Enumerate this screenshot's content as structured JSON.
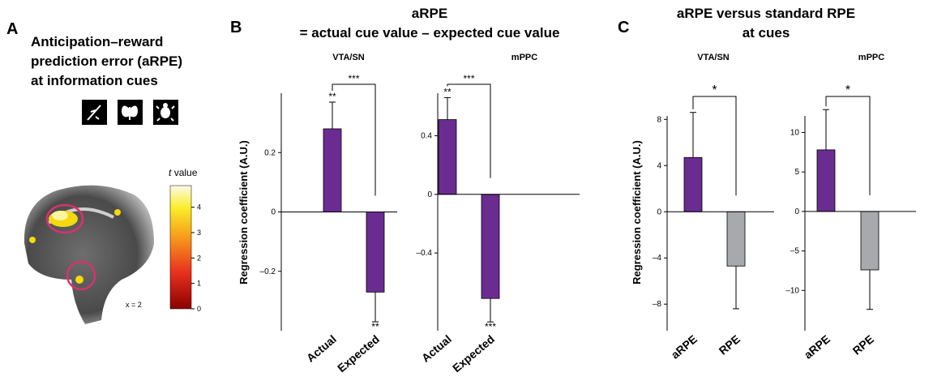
{
  "panel_labels": [
    "A",
    "B",
    "C"
  ],
  "panel_a": {
    "title_lines": [
      "Anticipation–reward",
      "prediction error (aRPE)",
      "at information cues"
    ],
    "colorbar": {
      "label_var": "t",
      "label": "value",
      "lim": [
        0,
        4.85
      ],
      "ticks": [
        0,
        1,
        2,
        3,
        4
      ]
    },
    "slice_label": "x = 2"
  },
  "panel_b": {
    "title": "aRPE",
    "subtitle": "= actual cue value – expected cue value"
  },
  "panel_c": {
    "title_lines": [
      "aRPE versus standard RPE",
      "at cues"
    ]
  },
  "chart_data": [
    {
      "type": "bar",
      "title": "VTA/SN",
      "ylabel": "Regression coefficient (A.U.)",
      "categories": [
        "Actual",
        "Expected"
      ],
      "values": [
        0.28,
        -0.27
      ],
      "errors": [
        0.09,
        0.1
      ],
      "colors": [
        "#6a2c91",
        "#6a2c91"
      ],
      "stars": [
        "**",
        "**"
      ],
      "bracket": "***",
      "ylim": [
        -0.4,
        0.4
      ],
      "yticks": [
        {
          "value": -0.2,
          "label": "–0.2"
        },
        0,
        0.2
      ]
    },
    {
      "type": "bar",
      "title": "mPPC",
      "categories": [
        "Actual",
        "Expected"
      ],
      "values": [
        0.51,
        -0.71
      ],
      "errors": [
        0.15,
        0.16
      ],
      "colors": [
        "#6a2c91",
        "#6a2c91"
      ],
      "stars": [
        "**",
        "***"
      ],
      "bracket": "***",
      "ylim": [
        -0.93,
        0.69
      ],
      "yticks": [
        {
          "value": -0.4,
          "label": "–0.4"
        },
        0,
        0.4
      ]
    },
    {
      "type": "bar",
      "title": "VTA/SN",
      "ylabel": "Regression coefficient (A.U.)",
      "categories": [
        "aRPE",
        "RPE"
      ],
      "values": [
        4.7,
        -4.7
      ],
      "errors": [
        3.9,
        3.7
      ],
      "colors": [
        "#6a2c91",
        "#a7a9ac"
      ],
      "bracket": "*",
      "ylim": [
        -10.3,
        8.3
      ],
      "yticks": [
        {
          "value": -8,
          "label": "–8"
        },
        {
          "value": -4,
          "label": "–4"
        },
        0,
        4,
        8
      ]
    },
    {
      "type": "bar",
      "title": "mPPC",
      "categories": [
        "aRPE",
        "RPE"
      ],
      "values": [
        7.8,
        -7.4
      ],
      "errors": [
        5.1,
        5.0
      ],
      "colors": [
        "#6a2c91",
        "#a7a9ac"
      ],
      "bracket": "*",
      "ylim": [
        -15.1,
        12.1
      ],
      "yticks": [
        {
          "value": -10,
          "label": "–10"
        },
        {
          "value": -5,
          "label": "–5"
        },
        0,
        5,
        10
      ]
    }
  ]
}
